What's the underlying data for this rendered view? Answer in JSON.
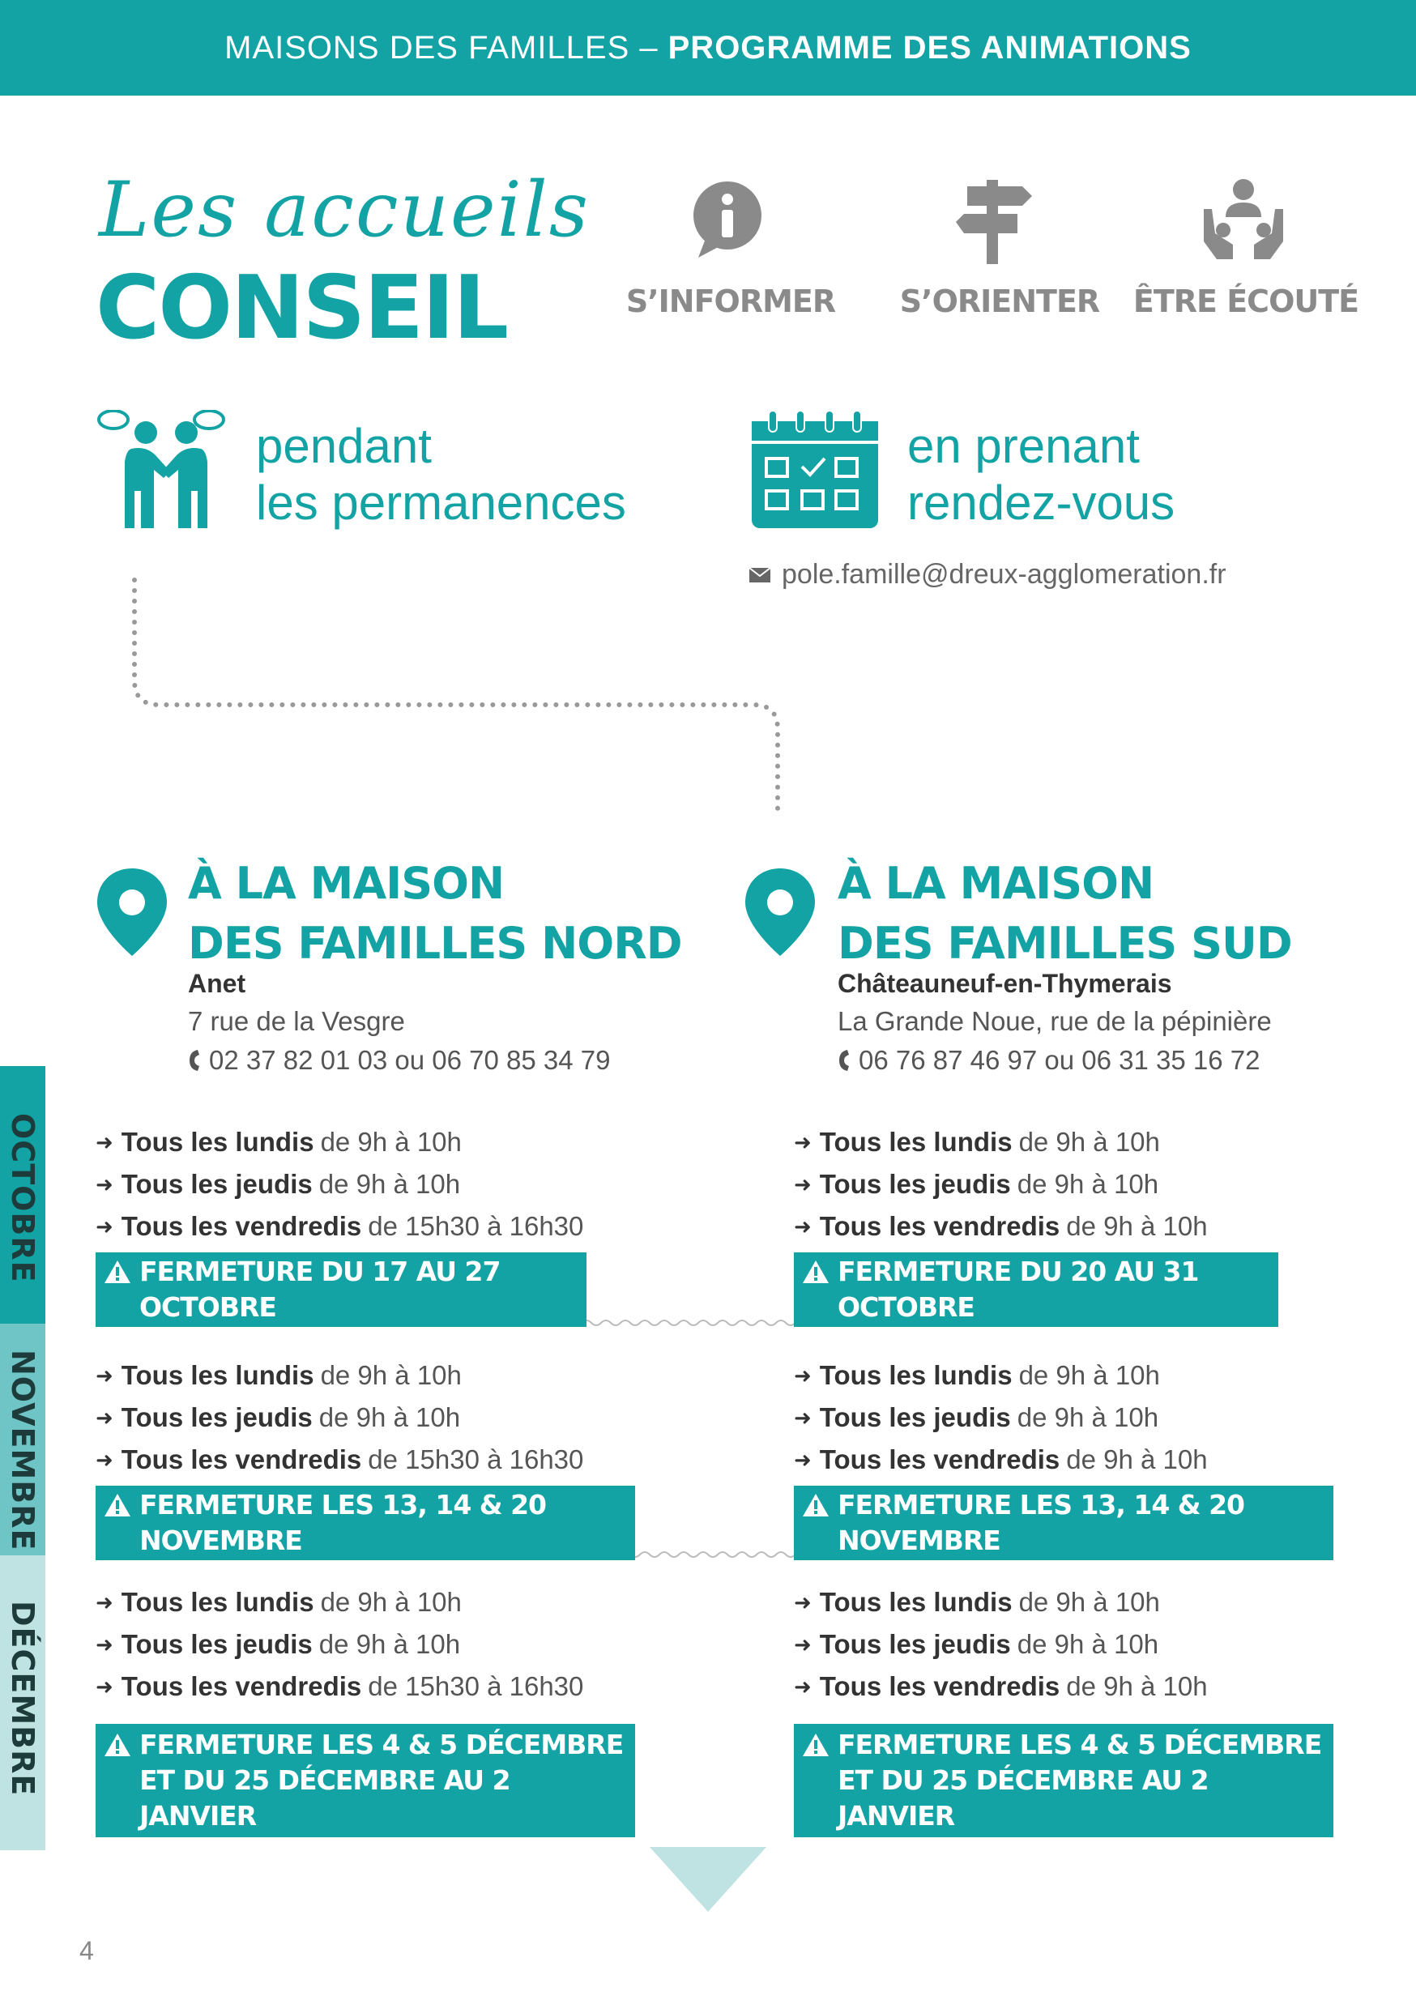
{
  "header": {
    "prefix": "MAISONS DES FAMILLES –",
    "title": "PROGRAMME DES ANIMATIONS"
  },
  "hero": {
    "script_title": "Les accueils",
    "big_title": "CONSEIL"
  },
  "pillars": [
    {
      "icon": "info-bubble-icon",
      "label": "S’INFORMER"
    },
    {
      "icon": "signpost-icon",
      "label": "S’ORIENTER"
    },
    {
      "icon": "listening-icon",
      "label": "ÊTRE ÉCOUTÉ"
    }
  ],
  "modes": {
    "permanence": {
      "line1": "pendant",
      "line2": "les permanences",
      "icon": "people-talking-icon"
    },
    "rdv": {
      "line1": "en prenant",
      "line2": "rendez-vous",
      "icon": "calendar-icon"
    },
    "email": "pole.famille@dreux-agglomeration.fr"
  },
  "sites": {
    "nord": {
      "title1": "À LA MAISON",
      "title2": "DES FAMILLES NORD",
      "city": "Anet",
      "address": "7 rue de la Vesgre",
      "phone": "02 37 82 01 03 ou 06 70 85 34 79"
    },
    "sud": {
      "title1": "À LA MAISON",
      "title2": "DES FAMILLES SUD",
      "city": "Châteauneuf-en-Thymerais",
      "address": "La Grande Noue, rue de la pépinière",
      "phone": "06 76 87 46 97 ou 06 31 35 16 72"
    }
  },
  "months": [
    "OCTOBRE",
    "NOVEMBRE",
    "DÉCEMBRE"
  ],
  "schedule": {
    "nord": {
      "octobre": {
        "rows": [
          [
            "Tous les lundis",
            "de 9h à 10h"
          ],
          [
            "Tous les jeudis",
            "de 9h à 10h"
          ],
          [
            "Tous les vendredis",
            "de 15h30 à 16h30"
          ]
        ],
        "closure": [
          "FERMETURE DU 17 AU 27 OCTOBRE"
        ]
      },
      "novembre": {
        "rows": [
          [
            "Tous les lundis",
            "de 9h à 10h"
          ],
          [
            "Tous les jeudis",
            "de 9h à 10h"
          ],
          [
            "Tous les vendredis",
            "de 15h30 à 16h30"
          ]
        ],
        "closure": [
          "FERMETURE LES 13, 14 & 20 NOVEMBRE"
        ]
      },
      "decembre": {
        "rows": [
          [
            "Tous les lundis",
            "de 9h à 10h"
          ],
          [
            "Tous les jeudis",
            "de 9h à 10h"
          ],
          [
            "Tous les vendredis",
            "de 15h30 à 16h30"
          ]
        ],
        "closure": [
          "FERMETURE LES 4 & 5 DÉCEMBRE",
          "ET DU 25 DÉCEMBRE AU 2 JANVIER"
        ]
      }
    },
    "sud": {
      "octobre": {
        "rows": [
          [
            "Tous les lundis",
            "de 9h à 10h"
          ],
          [
            "Tous les jeudis",
            "de 9h à 10h"
          ],
          [
            "Tous les vendredis",
            "de 9h à 10h"
          ]
        ],
        "closure": [
          "FERMETURE DU 20 AU 31 OCTOBRE"
        ]
      },
      "novembre": {
        "rows": [
          [
            "Tous les lundis",
            "de 9h à 10h"
          ],
          [
            "Tous les jeudis",
            "de 9h à 10h"
          ],
          [
            "Tous les vendredis",
            "de 9h à 10h"
          ]
        ],
        "closure": [
          "FERMETURE LES 13, 14 & 20 NOVEMBRE"
        ]
      },
      "decembre": {
        "rows": [
          [
            "Tous les lundis",
            "de 9h à 10h"
          ],
          [
            "Tous les jeudis",
            "de 9h à 10h"
          ],
          [
            "Tous les vendredis",
            "de 9h à 10h"
          ]
        ],
        "closure": [
          "FERMETURE LES 4 & 5 DÉCEMBRE",
          "ET DU 25 DÉCEMBRE AU 2 JANVIER"
        ]
      }
    }
  },
  "page_number": "4",
  "colors": {
    "teal": "#13a3a4",
    "light_teal": "#bfe2e2",
    "grey_icon": "#8a8a8a"
  }
}
